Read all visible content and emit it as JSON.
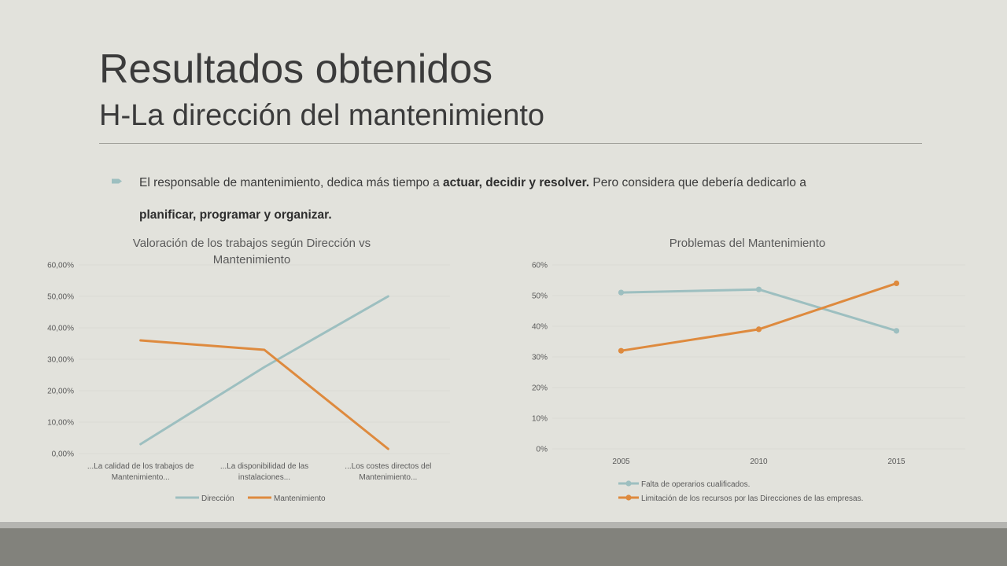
{
  "slide": {
    "title": "Resultados obtenidos",
    "subtitle": "H-La dirección del mantenimiento",
    "bullet": {
      "part1": "El responsable de mantenimiento, dedica más tiempo a ",
      "bold1": "actuar, decidir y resolver.",
      "part2": " Pero considera que debería dedicarlo a ",
      "bold2": "planificar, programar y organizar."
    }
  },
  "colors": {
    "series_blue": "#9dbfc0",
    "series_orange": "#de8a3e",
    "grid": "#d9d9d3",
    "axis_text": "#5a5a5a"
  },
  "chart_data": [
    {
      "type": "line",
      "title_line1": "Valoración de los trabajos según Dirección vs",
      "title_line2": "Mantenimiento",
      "categories": [
        [
          "...La calidad de los trabajos de",
          "Mantenimiento..."
        ],
        [
          "...La disponibilidad de las",
          "instalaciones..."
        ],
        [
          "...Los costes directos del",
          "Mantenimiento..."
        ]
      ],
      "y_ticks": [
        "0,00%",
        "10,00%",
        "20,00%",
        "30,00%",
        "40,00%",
        "50,00%",
        "60,00%"
      ],
      "ylim": [
        0,
        60
      ],
      "grid": true,
      "markers": false,
      "legend_position": "bottom",
      "series": [
        {
          "name": "Dirección",
          "color": "#9dbfc0",
          "values": [
            3,
            27.5,
            50
          ]
        },
        {
          "name": "Mantenimiento",
          "color": "#de8a3e",
          "values": [
            36,
            33,
            1.5
          ]
        }
      ]
    },
    {
      "type": "line",
      "title_line1": "Problemas del Mantenimiento",
      "title_line2": "",
      "categories": [
        [
          "2005"
        ],
        [
          "2010"
        ],
        [
          "2015"
        ]
      ],
      "y_ticks": [
        "0%",
        "10%",
        "20%",
        "30%",
        "40%",
        "50%",
        "60%"
      ],
      "ylim": [
        0,
        60
      ],
      "grid": true,
      "markers": true,
      "legend_position": "bottom",
      "series": [
        {
          "name": "Falta de operarios cualificados.",
          "color": "#9dbfc0",
          "values": [
            51,
            52,
            38.5
          ]
        },
        {
          "name": "Limitación de los recursos por las Direcciones de las empresas.",
          "color": "#de8a3e",
          "values": [
            32,
            39,
            54
          ]
        }
      ]
    }
  ]
}
